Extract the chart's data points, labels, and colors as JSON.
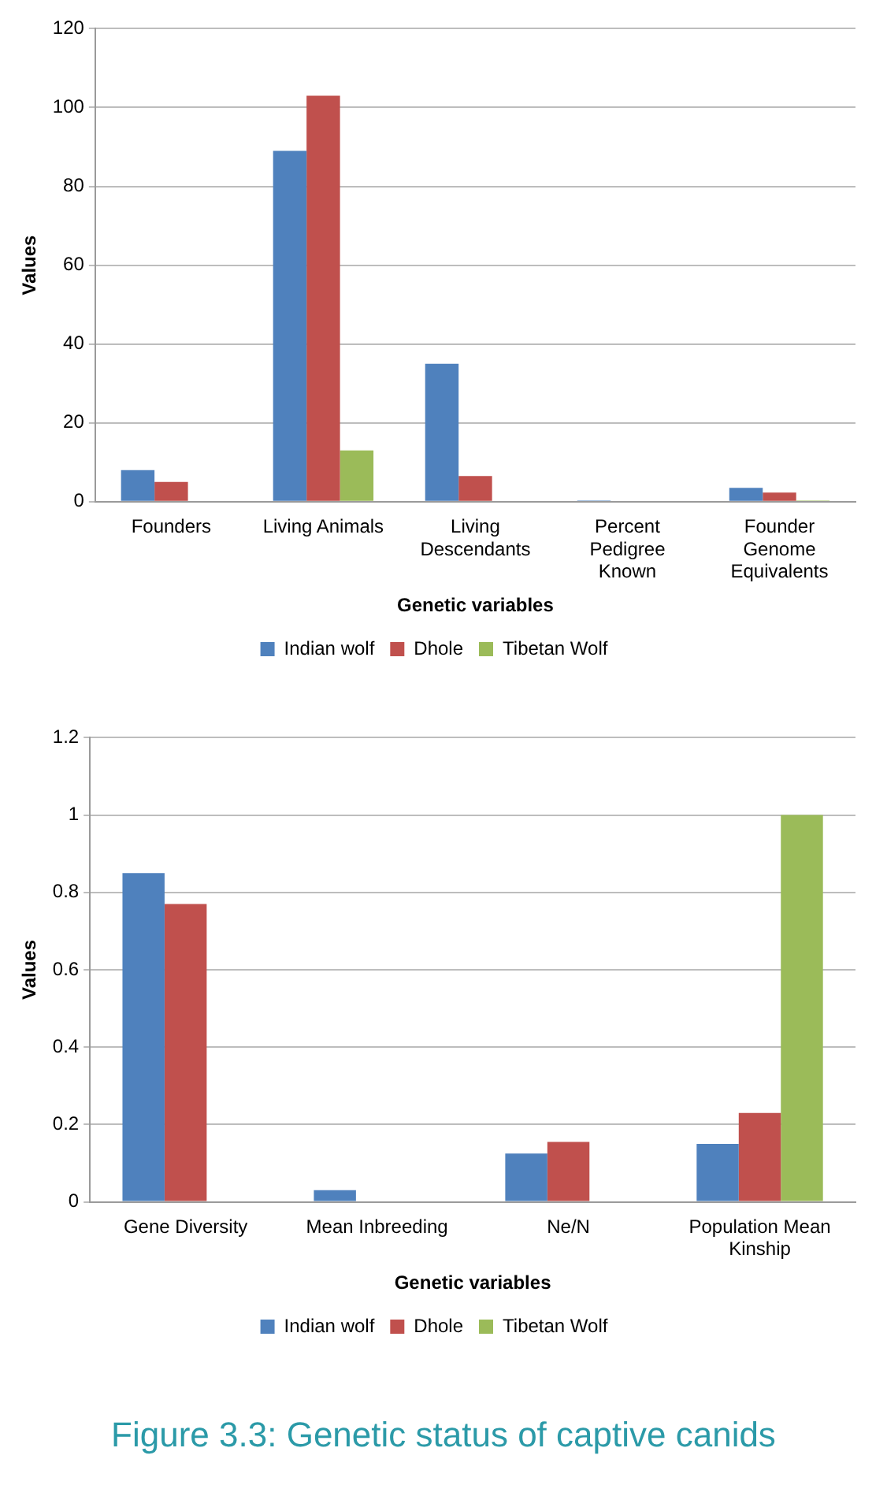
{
  "chart_data": [
    {
      "type": "bar",
      "xlabel": "Genetic variables",
      "ylabel": "Values",
      "categories": [
        "Founders",
        "Living Animals",
        "Living Descendants",
        "Percent Pedigree Known",
        "Founder Genome Equivalents"
      ],
      "series": [
        {
          "name": "Indian wolf",
          "color": "#4f81bd",
          "values": [
            8,
            89,
            35,
            0.3,
            3.5
          ]
        },
        {
          "name": "Dhole",
          "color": "#c0504d",
          "values": [
            5,
            103,
            6.5,
            null,
            2.3
          ]
        },
        {
          "name": "Tibetan Wolf",
          "color": "#9bbb59",
          "values": [
            null,
            13,
            null,
            null,
            0.3
          ]
        }
      ],
      "ylim": [
        0,
        120
      ],
      "yticks": [
        0,
        20,
        40,
        60,
        80,
        100,
        120
      ],
      "grid": "y",
      "legend": "bottom"
    },
    {
      "type": "bar",
      "xlabel": "Genetic variables",
      "ylabel": "Values",
      "categories": [
        "Gene Diversity",
        "Mean Inbreeding",
        "Ne/N",
        "Population Mean Kinship"
      ],
      "series": [
        {
          "name": "Indian wolf",
          "color": "#4f81bd",
          "values": [
            0.85,
            0.03,
            0.125,
            0.15
          ]
        },
        {
          "name": "Dhole",
          "color": "#c0504d",
          "values": [
            0.77,
            null,
            0.155,
            0.23
          ]
        },
        {
          "name": "Tibetan Wolf",
          "color": "#9bbb59",
          "values": [
            null,
            null,
            null,
            1
          ]
        }
      ],
      "ylim": [
        0,
        1.2
      ],
      "yticks": [
        0,
        0.2,
        0.4,
        0.6,
        0.8,
        1,
        1.2
      ],
      "grid": "y",
      "legend": "bottom",
      "annotations": [
        "Figure 3.3: Genetic status of captive canids"
      ]
    }
  ]
}
